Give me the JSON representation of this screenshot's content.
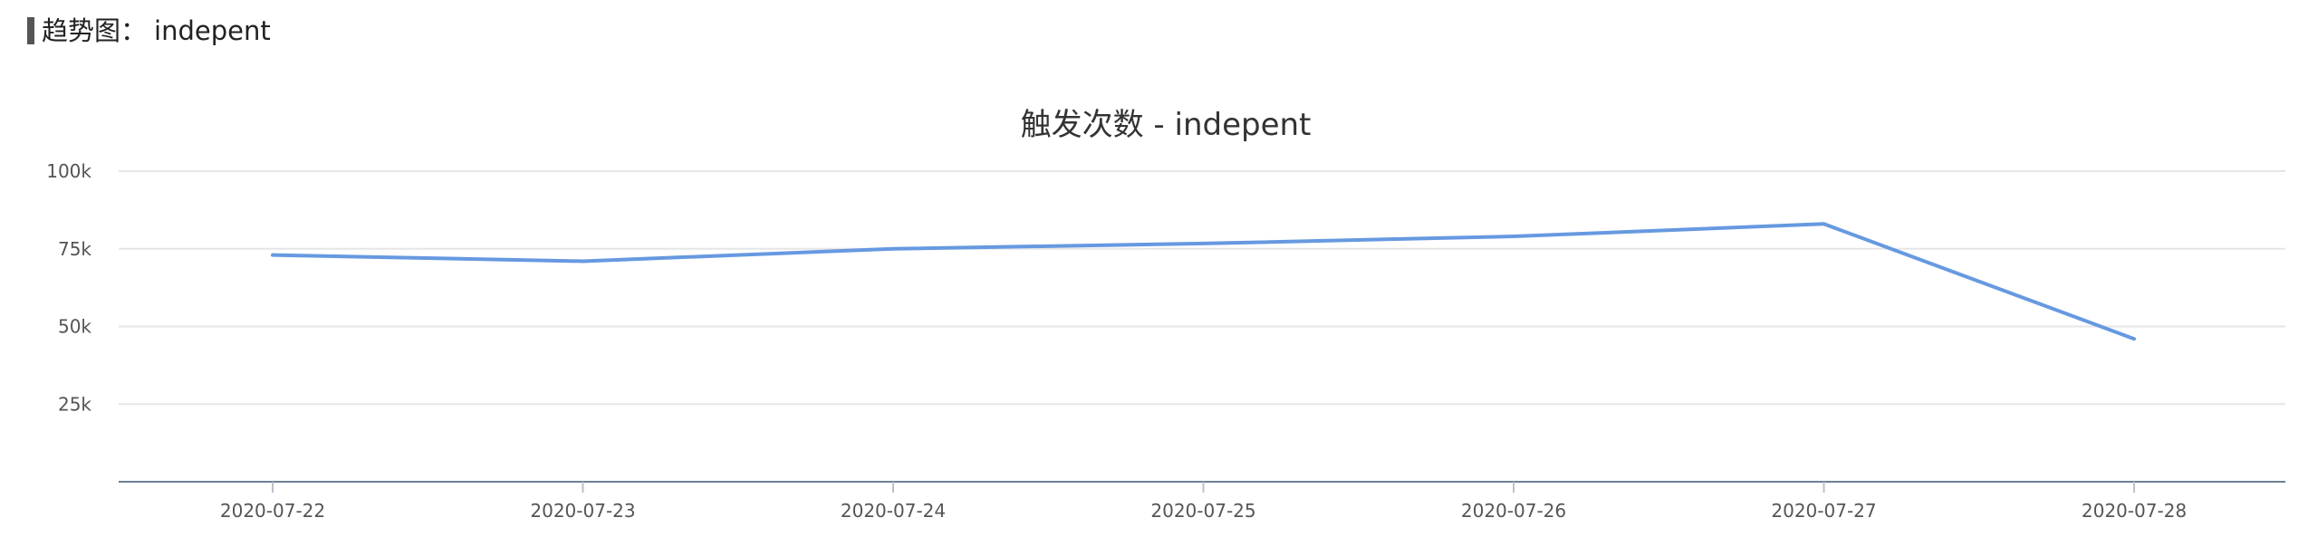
{
  "section": {
    "prefix": "趋势图：",
    "name": "indepent"
  },
  "colors": {
    "series": "#6699e0",
    "marker": "#555555"
  },
  "chart_data": {
    "type": "line",
    "title": "触发次数 - indepent",
    "xlabel": "",
    "ylabel": "",
    "categories": [
      "2020-07-22",
      "2020-07-23",
      "2020-07-24",
      "2020-07-25",
      "2020-07-26",
      "2020-07-27",
      "2020-07-28"
    ],
    "y_ticks": [
      25000,
      50000,
      75000,
      100000
    ],
    "y_tick_labels": [
      "25k",
      "50k",
      "75k",
      "100k"
    ],
    "ylim": [
      0,
      100000
    ],
    "grid": true,
    "legend": "none",
    "series": [
      {
        "values": [
          73000,
          71000,
          75000,
          76700,
          79000,
          83000,
          46000
        ]
      }
    ]
  }
}
